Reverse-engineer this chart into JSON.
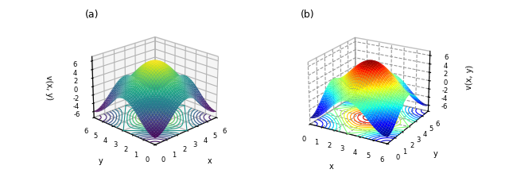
{
  "title_a": "(a)",
  "title_b": "(b)",
  "xlabel": "x",
  "ylabel": "y",
  "zlabel_a": "v(x, y)",
  "zlabel_b": "v(x, y)",
  "x_range": [
    0,
    6.28318
  ],
  "y_range": [
    0,
    6.28318
  ],
  "zticks": [
    -6,
    -4,
    -2,
    0,
    2,
    4,
    6
  ],
  "colormap_a": "viridis",
  "colormap_b": "jet",
  "contour_levels": 14,
  "n_points": 80,
  "amplitude": 3.0,
  "contour_zoffset": -7.5,
  "zlim_min": -7.5,
  "zlim_max": 7,
  "elev_a": 22,
  "azim_a": -135,
  "elev_b": 22,
  "azim_b": -60,
  "tick_integers": [
    0,
    1,
    2,
    3,
    4,
    5,
    6
  ]
}
